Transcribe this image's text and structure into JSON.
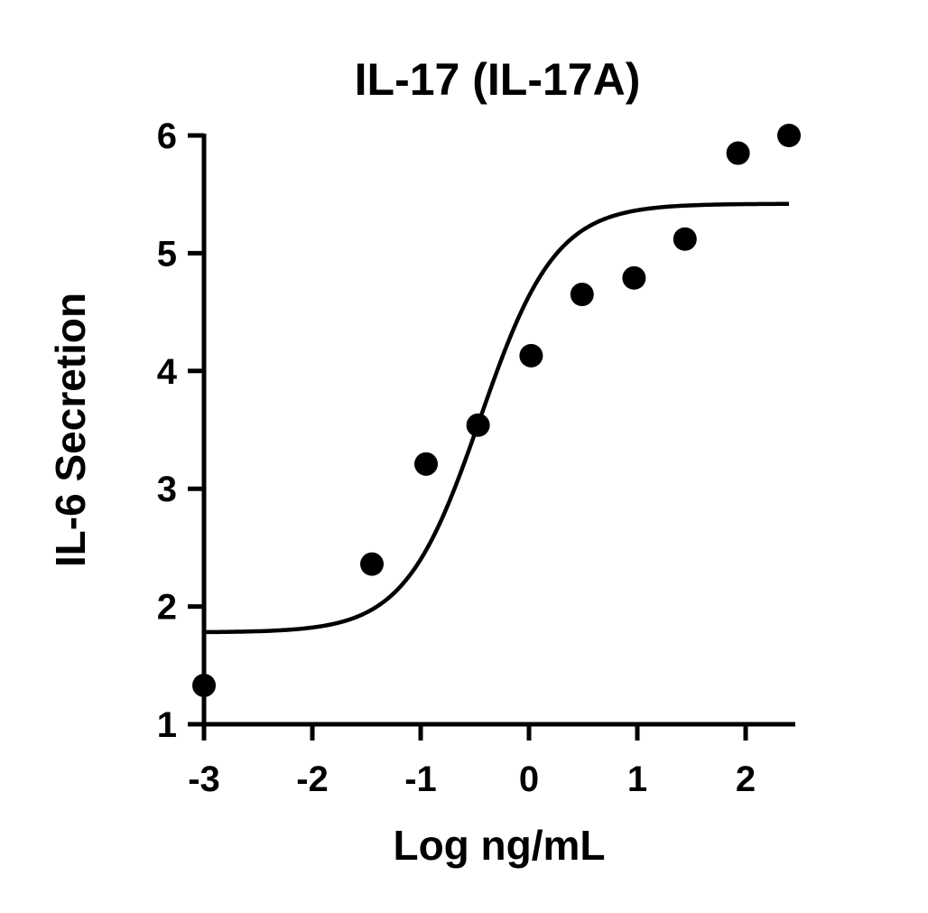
{
  "chart_data": {
    "type": "scatter",
    "title": "IL-17 (IL-17A)",
    "xlabel": "Log ng/mL",
    "ylabel": "IL-6 Secretion",
    "xlim": [
      -3,
      2.45
    ],
    "ylim": [
      1,
      6
    ],
    "xticks": [
      -3,
      -2,
      -1,
      0,
      1,
      2
    ],
    "yticks": [
      1,
      2,
      3,
      4,
      5,
      6
    ],
    "grid": false,
    "points": {
      "x": [
        -3.0,
        -1.45,
        -0.95,
        -0.47,
        0.02,
        0.49,
        0.97,
        1.44,
        1.93,
        2.4
      ],
      "y": [
        1.33,
        2.36,
        3.21,
        3.54,
        4.13,
        4.65,
        4.79,
        5.12,
        5.85,
        6.0
      ]
    },
    "fit_curve": {
      "model": "four-parameter logistic",
      "bottom": 1.78,
      "top": 5.42,
      "log_ec50": -0.45,
      "hill_slope": 1.25,
      "x_range": [
        -3.0,
        2.4
      ]
    }
  }
}
